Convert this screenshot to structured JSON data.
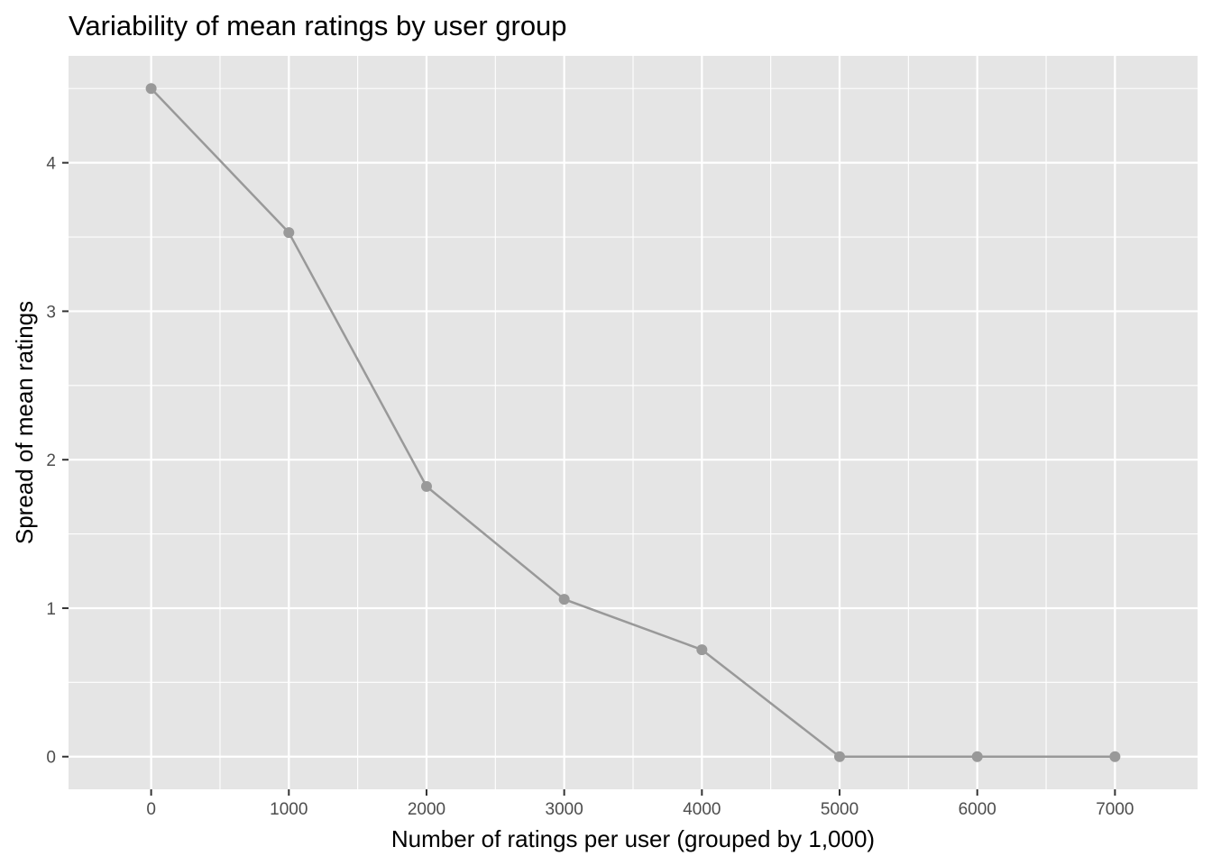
{
  "chart_data": {
    "type": "line",
    "title": "Variability of mean ratings by user group",
    "xlabel": "Number of ratings per user (grouped by 1,000)",
    "ylabel": "Spread of mean ratings",
    "x": [
      0,
      1000,
      2000,
      3000,
      4000,
      5000,
      6000,
      7000
    ],
    "series": [
      {
        "values": [
          4.5,
          3.53,
          1.82,
          1.06,
          0.72,
          0.0,
          0.0,
          0.0
        ]
      }
    ],
    "xlim": [
      -600,
      7600
    ],
    "ylim": [
      -0.22,
      4.72
    ],
    "xticks": [
      0,
      1000,
      2000,
      3000,
      4000,
      5000,
      6000,
      7000
    ],
    "yticks": [
      0,
      1,
      2,
      3,
      4
    ],
    "grid": true,
    "legend": "none",
    "colors": {
      "panel": "#e5e5e5",
      "grid": "#ffffff",
      "line": "#999999",
      "point": "#999999"
    }
  }
}
